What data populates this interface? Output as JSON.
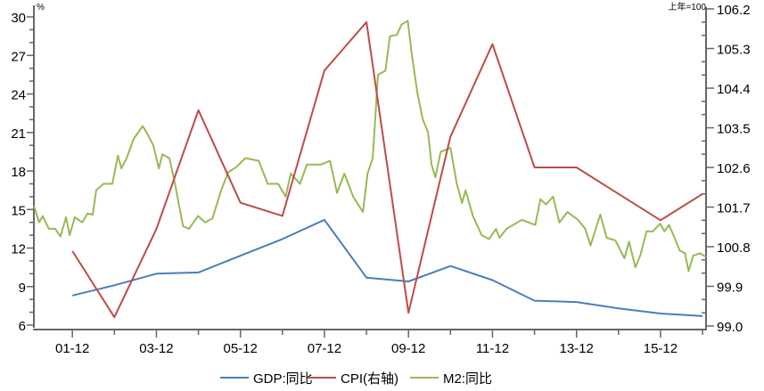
{
  "chart_data": {
    "type": "line",
    "title": "",
    "x_unit": "month index (0 = 2001-01)",
    "xlim": [
      0,
      192
    ],
    "x_tick_labels": [
      {
        "month": 11,
        "label": "01-12"
      },
      {
        "month": 35,
        "label": "03-12"
      },
      {
        "month": 59,
        "label": "05-12"
      },
      {
        "month": 83,
        "label": "07-12"
      },
      {
        "month": 107,
        "label": "09-12"
      },
      {
        "month": 131,
        "label": "11-12"
      },
      {
        "month": 155,
        "label": "13-12"
      },
      {
        "month": 179,
        "label": "15-12"
      }
    ],
    "left_axis": {
      "unit_label": "%",
      "ylim": [
        6,
        30
      ],
      "ticks": [
        6,
        9,
        12,
        15,
        18,
        21,
        24,
        27,
        30
      ],
      "tick_labels": [
        "6",
        "9",
        "12",
        "15",
        "18",
        "21",
        "24",
        "27",
        "30"
      ]
    },
    "right_axis": {
      "unit_label": "上年=100",
      "ylim": [
        99.0,
        106.2
      ],
      "ticks": [
        99.0,
        99.9,
        100.8,
        101.7,
        102.6,
        103.5,
        104.4,
        105.3,
        106.2
      ],
      "tick_labels": [
        "99.0",
        "99.9",
        "100.8",
        "101.7",
        "102.6",
        "103.5",
        "104.4",
        "105.3",
        "106.2"
      ]
    },
    "legend_position": "bottom",
    "series": [
      {
        "name": "GDP:同比",
        "axis": "left",
        "color": "#4a7ebb",
        "points": [
          [
            11,
            8.3
          ],
          [
            23,
            9.1
          ],
          [
            35,
            10.0
          ],
          [
            47,
            10.1
          ],
          [
            59,
            11.4
          ],
          [
            71,
            12.7
          ],
          [
            83,
            14.2
          ],
          [
            95,
            9.7
          ],
          [
            107,
            9.4
          ],
          [
            119,
            10.6
          ],
          [
            131,
            9.5
          ],
          [
            143,
            7.9
          ],
          [
            155,
            7.8
          ],
          [
            167,
            7.3
          ],
          [
            179,
            6.9
          ],
          [
            191,
            6.7
          ]
        ]
      },
      {
        "name": "CPI(右轴)",
        "axis": "right",
        "color": "#be4b48",
        "points": [
          [
            11,
            100.7
          ],
          [
            23,
            99.2
          ],
          [
            35,
            101.2
          ],
          [
            47,
            103.9
          ],
          [
            59,
            101.8
          ],
          [
            71,
            101.5
          ],
          [
            83,
            104.8
          ],
          [
            95,
            105.9
          ],
          [
            107,
            99.3
          ],
          [
            119,
            103.3
          ],
          [
            131,
            105.4
          ],
          [
            143,
            102.6
          ],
          [
            155,
            102.6
          ],
          [
            167,
            102.0
          ],
          [
            179,
            101.4
          ],
          [
            191,
            102.0
          ]
        ]
      },
      {
        "name": "M2:同比",
        "axis": "left",
        "color": "#98b954",
        "points": [
          [
            0,
            15.3
          ],
          [
            1.5,
            14.0
          ],
          [
            2.5,
            14.5
          ],
          [
            4.3,
            13.5
          ],
          [
            6.1,
            13.5
          ],
          [
            7.6,
            12.9
          ],
          [
            9.2,
            14.4
          ],
          [
            10.2,
            13.0
          ],
          [
            11.7,
            14.4
          ],
          [
            13.8,
            14.0
          ],
          [
            15.3,
            14.7
          ],
          [
            16.8,
            14.6
          ],
          [
            17.8,
            16.5
          ],
          [
            19.9,
            17.0
          ],
          [
            22.4,
            17.0
          ],
          [
            24,
            19.2
          ],
          [
            25,
            18.2
          ],
          [
            26.5,
            19.0
          ],
          [
            28.5,
            20.5
          ],
          [
            31.1,
            21.5
          ],
          [
            32.6,
            20.8
          ],
          [
            34.1,
            20.0
          ],
          [
            35.7,
            18.2
          ],
          [
            36.7,
            19.3
          ],
          [
            38.7,
            19.0
          ],
          [
            40.3,
            17.0
          ],
          [
            42.6,
            13.7
          ],
          [
            44.3,
            13.5
          ],
          [
            46.9,
            14.5
          ],
          [
            48.9,
            14.0
          ],
          [
            51,
            14.3
          ],
          [
            53.5,
            16.5
          ],
          [
            55.5,
            17.9
          ],
          [
            57.8,
            18.3
          ],
          [
            60.4,
            19.0
          ],
          [
            64.2,
            18.8
          ],
          [
            66.8,
            17.0
          ],
          [
            69.8,
            17.0
          ],
          [
            71.9,
            16.0
          ],
          [
            73.4,
            17.8
          ],
          [
            76,
            17.0
          ],
          [
            78,
            18.5
          ],
          [
            82,
            18.5
          ],
          [
            84.6,
            18.8
          ],
          [
            86.6,
            16.3
          ],
          [
            88.7,
            17.8
          ],
          [
            91.2,
            16.0
          ],
          [
            94,
            14.8
          ],
          [
            95.3,
            17.8
          ],
          [
            96.8,
            19.0
          ],
          [
            98.3,
            25.5
          ],
          [
            100.4,
            25.8
          ],
          [
            101.7,
            28.5
          ],
          [
            103.7,
            28.6
          ],
          [
            105,
            29.4
          ],
          [
            106.8,
            29.7
          ],
          [
            108,
            27.0
          ],
          [
            109.6,
            24.0
          ],
          [
            111.1,
            22.0
          ],
          [
            112.6,
            21.0
          ],
          [
            113.6,
            18.5
          ],
          [
            114.7,
            17.5
          ],
          [
            116.2,
            19.5
          ],
          [
            119,
            19.8
          ],
          [
            120.8,
            17.0
          ],
          [
            122.3,
            15.5
          ],
          [
            123.3,
            16.5
          ],
          [
            125.4,
            14.5
          ],
          [
            127.9,
            13.0
          ],
          [
            130,
            12.7
          ],
          [
            132,
            13.5
          ],
          [
            133,
            12.8
          ],
          [
            135,
            13.5
          ],
          [
            139.4,
            14.2
          ],
          [
            143.2,
            13.8
          ],
          [
            144.7,
            15.8
          ],
          [
            146.3,
            15.4
          ],
          [
            148.3,
            16.0
          ],
          [
            150.1,
            14.0
          ],
          [
            152.4,
            14.8
          ],
          [
            155.4,
            14.2
          ],
          [
            157.5,
            13.5
          ],
          [
            159,
            12.2
          ],
          [
            160.5,
            13.5
          ],
          [
            161.8,
            14.6
          ],
          [
            163.6,
            12.8
          ],
          [
            166.1,
            12.6
          ],
          [
            168.7,
            11.2
          ],
          [
            170,
            12.5
          ],
          [
            171.8,
            10.5
          ],
          [
            173.3,
            11.5
          ],
          [
            175,
            13.3
          ],
          [
            176.8,
            13.3
          ],
          [
            178.9,
            13.9
          ],
          [
            180.1,
            13.3
          ],
          [
            181.4,
            13.8
          ],
          [
            183,
            12.8
          ],
          [
            184.5,
            11.8
          ],
          [
            186,
            11.6
          ],
          [
            187,
            10.2
          ],
          [
            188.3,
            11.4
          ],
          [
            190.3,
            11.6
          ],
          [
            192,
            11.3
          ]
        ]
      }
    ]
  }
}
